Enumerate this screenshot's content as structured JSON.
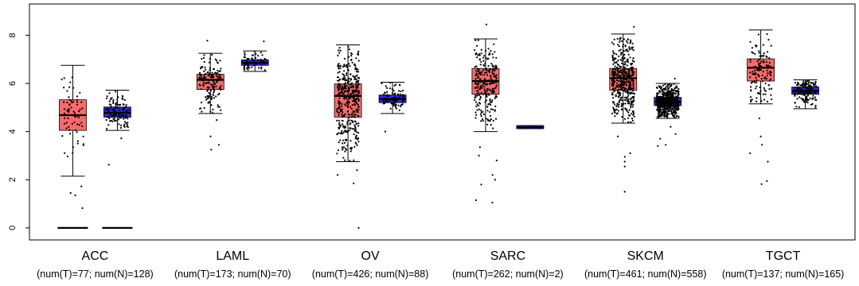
{
  "chart_data": {
    "type": "boxplot",
    "ylim": [
      -0.5,
      9.3
    ],
    "y_ticks": [
      0,
      2,
      4,
      6,
      8
    ],
    "y_tick_labels": [
      "0",
      "2",
      "4",
      "6",
      "8"
    ],
    "colors": {
      "tumor": "#f86b6b",
      "normal": "#2b2bd9",
      "points": "#000000"
    },
    "categories": [
      {
        "name": "ACC",
        "counts_label": "(num(T)=77; num(N)=128)",
        "tumor": {
          "n": 77,
          "q1": 4.05,
          "median": 4.68,
          "q3": 5.32,
          "whisker_low": 2.15,
          "whisker_high": 6.75,
          "outliers": [
            0.82,
            1.35,
            1.45,
            1.72,
            0,
            0,
            0,
            0
          ]
        },
        "normal": {
          "n": 128,
          "q1": 4.6,
          "median": 4.78,
          "q3": 5.02,
          "whisker_low": 4.05,
          "whisker_high": 5.72,
          "outliers": [
            2.62,
            3.72,
            0,
            0,
            0,
            0
          ]
        }
      },
      {
        "name": "LAML",
        "counts_label": "(num(T)=173; num(N)=70)",
        "tumor": {
          "n": 173,
          "q1": 5.75,
          "median": 6.15,
          "q3": 6.38,
          "whisker_low": 4.75,
          "whisker_high": 7.25,
          "outliers": [
            3.25,
            3.45,
            3.8,
            4.48,
            7.78
          ]
        },
        "normal": {
          "n": 70,
          "q1": 6.75,
          "median": 6.86,
          "q3": 6.98,
          "whisker_low": 6.5,
          "whisker_high": 7.35,
          "outliers": [
            7.75
          ]
        }
      },
      {
        "name": "OV",
        "counts_label": "(num(T)=426; num(N)=88)",
        "tumor": {
          "n": 426,
          "q1": 4.6,
          "median": 5.48,
          "q3": 5.98,
          "whisker_low": 2.75,
          "whisker_high": 7.6,
          "outliers": [
            0,
            1.85,
            2.2,
            2.4
          ]
        },
        "normal": {
          "n": 88,
          "q1": 5.2,
          "median": 5.35,
          "q3": 5.52,
          "whisker_low": 4.75,
          "whisker_high": 6.05,
          "outliers": [
            4.0
          ]
        }
      },
      {
        "name": "SARC",
        "counts_label": "(num(T)=262; num(N)=2)",
        "tumor": {
          "n": 262,
          "q1": 5.55,
          "median": 6.1,
          "q3": 6.62,
          "whisker_low": 4.0,
          "whisker_high": 7.85,
          "outliers": [
            1.05,
            1.15,
            1.8,
            2.0,
            2.2,
            2.8,
            3.0,
            3.35,
            8.45
          ]
        },
        "normal": {
          "n": 2,
          "q1": 4.12,
          "median": 4.18,
          "q3": 4.25,
          "whisker_low": 4.12,
          "whisker_high": 4.25,
          "outliers": []
        }
      },
      {
        "name": "SKCM",
        "counts_label": "(num(T)=461; num(N)=558)",
        "tumor": {
          "n": 461,
          "q1": 5.72,
          "median": 6.22,
          "q3": 6.62,
          "whisker_low": 4.35,
          "whisker_high": 8.05,
          "outliers": [
            1.5,
            2.55,
            2.75,
            2.95,
            3.1,
            3.8,
            8.35
          ]
        },
        "normal": {
          "n": 558,
          "q1": 5.08,
          "median": 5.24,
          "q3": 5.42,
          "whisker_low": 4.55,
          "whisker_high": 6.0,
          "outliers": [
            3.4,
            3.45,
            3.7,
            3.9,
            4.2,
            6.2
          ]
        }
      },
      {
        "name": "TGCT",
        "counts_label": "(num(T)=137; num(N)=165)",
        "tumor": {
          "n": 137,
          "q1": 6.1,
          "median": 6.65,
          "q3": 7.02,
          "whisker_low": 5.15,
          "whisker_high": 8.22,
          "outliers": [
            1.82,
            1.95,
            2.75,
            3.1,
            3.45,
            3.8,
            4.55
          ]
        },
        "normal": {
          "n": 165,
          "q1": 5.55,
          "median": 5.68,
          "q3": 5.85,
          "whisker_low": 4.95,
          "whisker_high": 6.15,
          "outliers": []
        }
      }
    ]
  }
}
